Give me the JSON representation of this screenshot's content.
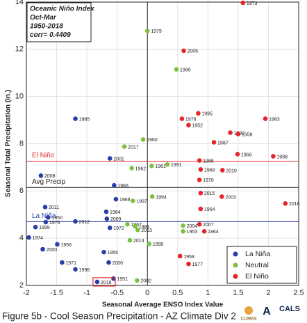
{
  "chart_data": {
    "type": "scatter",
    "xlabel": "Seasonal Average ENSO Index Value",
    "ylabel": "Seasonal Total Precipitation (in.)",
    "xlim": [
      -2,
      2.5
    ],
    "xticks": [
      -2,
      -1.5,
      -1,
      -0.5,
      0,
      0.5,
      1,
      1.5,
      2,
      2.5
    ],
    "ylim": [
      2,
      14
    ],
    "yticks": [
      2,
      4,
      6,
      8,
      10,
      12,
      14
    ],
    "grid": true,
    "legend": "lower right",
    "annotation": [
      "Oceanic Niño Index",
      "Oct-Mar",
      "1950-2018",
      "corr= 0.4409"
    ],
    "hlines": [
      {
        "value": 7.26,
        "label": "El Niño",
        "color": "#e3262a"
      },
      {
        "value": 6.15,
        "label": "Avg Precip",
        "color": "#222222"
      },
      {
        "value": 4.7,
        "label": "La Niña",
        "color": "#2b3ea8"
      }
    ],
    "vlines": [
      {
        "value": 0,
        "color": "#222222"
      }
    ],
    "series": [
      {
        "name": "La Niña",
        "color": "#2b3ea8",
        "x": [
          -1.19,
          -0.62,
          -1.76,
          -0.55,
          -0.52,
          -1.69,
          -0.68,
          -0.67,
          -1.64,
          -1.19,
          -1.68,
          -0.62,
          -1.85,
          -1.96,
          -1.49,
          -1.73,
          -0.72,
          -1.41,
          -0.64,
          -1.19,
          -0.56,
          -0.83
        ],
        "values": [
          9.06,
          7.38,
          6.65,
          6.24,
          5.65,
          5.32,
          5.12,
          4.82,
          4.88,
          4.71,
          4.68,
          4.44,
          4.47,
          4.03,
          3.74,
          3.53,
          3.41,
          2.97,
          2.97,
          2.68,
          2.29,
          2.15
        ],
        "labels": [
          "1985",
          "2001",
          "2008",
          "1965",
          "1968",
          "2011",
          "1984",
          "2009",
          "1950",
          "2012",
          "1976",
          "1972",
          "1999",
          "1974",
          "1956",
          "2000",
          "1955",
          "1971",
          "2006",
          "1996",
          "1951",
          "2018"
        ]
      },
      {
        "name": "Neutral",
        "color": "#7cc242",
        "x": [
          0.0,
          0.48,
          -0.07,
          -0.38,
          0.33,
          0.07,
          -0.26,
          0.08,
          -0.24,
          -0.33,
          0.59,
          -0.2,
          -0.16,
          0.59,
          -0.29,
          0.03,
          -0.17
        ],
        "values": [
          12.78,
          11.15,
          8.18,
          7.88,
          7.12,
          7.06,
          6.97,
          5.76,
          5.58,
          4.59,
          4.53,
          4.5,
          4.35,
          4.29,
          3.91,
          3.76,
          2.21
        ],
        "labels": [
          "1979",
          "1980",
          "1960",
          "2017",
          "1991",
          "1961",
          "1962",
          "1994",
          "1997",
          "1967",
          "2004",
          "1981",
          "2013",
          "1953",
          "2014",
          "1990",
          "2002"
        ]
      },
      {
        "name": "El Niño",
        "color": "#e3262a",
        "x": [
          1.58,
          0.6,
          0.84,
          0.57,
          0.68,
          1.95,
          1.37,
          1.5,
          1.1,
          1.49,
          2.08,
          0.86,
          0.88,
          1.24,
          0.86,
          0.88,
          1.23,
          2.28,
          0.88,
          0.86,
          0.94,
          0.54,
          0.68
        ],
        "values": [
          13.97,
          11.94,
          9.29,
          9.06,
          8.79,
          9.06,
          8.47,
          8.41,
          8.06,
          7.56,
          7.47,
          7.29,
          6.91,
          6.88,
          6.47,
          5.91,
          5.76,
          5.47,
          5.24,
          4.59,
          4.29,
          3.24,
          2.91
        ],
        "labels": [
          "1973",
          "2005",
          "1995",
          "1978",
          "1952",
          "1983",
          "1992",
          "1958",
          "1987",
          "1966",
          "1998",
          "1988",
          "1969",
          "2010",
          "1970",
          "2015",
          "2003",
          "2016",
          "1954",
          "2007",
          "1964",
          "1959",
          "1977"
        ]
      }
    ]
  },
  "caption": "Figure 5b - Cool Season Precipitation - AZ Climate Div 2",
  "logos": [
    "CLIMAS",
    "A",
    "CALS"
  ]
}
